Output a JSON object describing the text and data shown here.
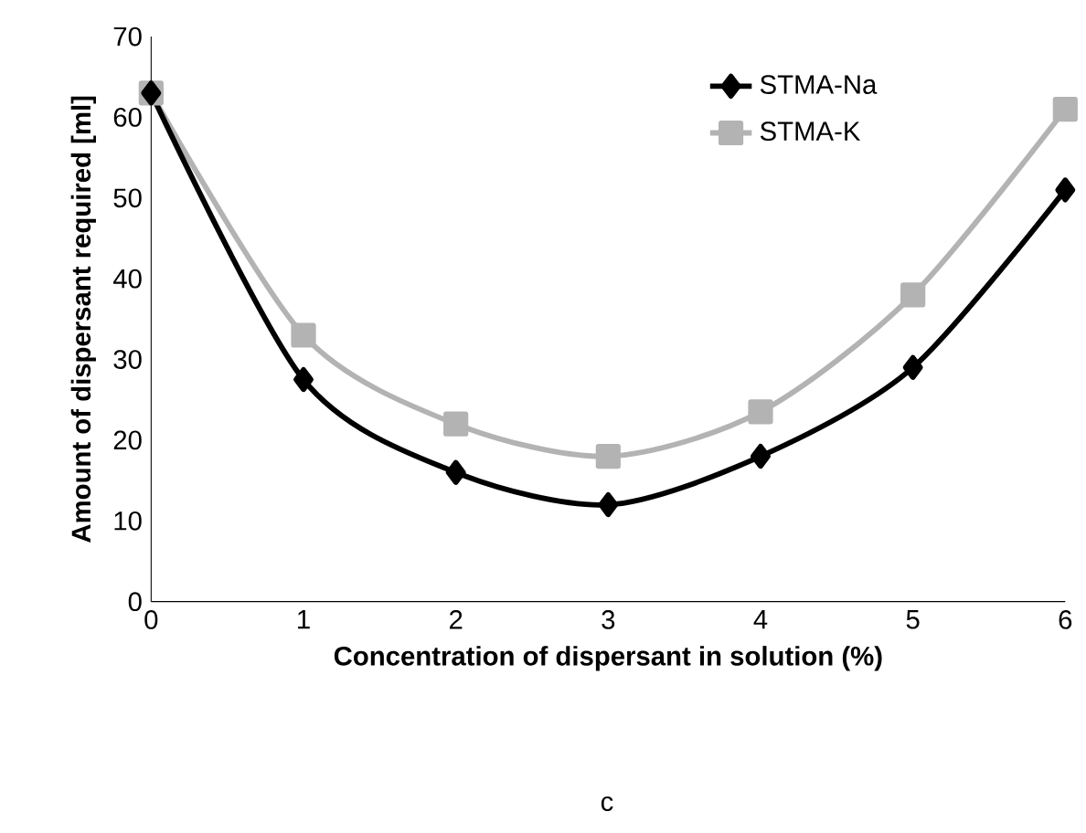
{
  "chart_data": {
    "type": "line",
    "xlabel": "Concentration of dispersant in solution (%)",
    "ylabel": "Amount of dispersant required [ml]",
    "x": [
      0,
      1,
      2,
      3,
      4,
      5,
      6
    ],
    "series": [
      {
        "name": "STMA-Na",
        "color": "#000000",
        "marker": "diamond",
        "values": [
          63,
          27.5,
          16,
          12,
          18,
          29,
          51
        ]
      },
      {
        "name": "STMA-K",
        "color": "#b3b3b3",
        "marker": "square",
        "values": [
          63,
          33,
          22,
          18,
          23.5,
          38,
          61
        ]
      }
    ],
    "xlim": [
      0,
      6
    ],
    "xticks": [
      0,
      1,
      2,
      3,
      4,
      5,
      6
    ],
    "ylim": [
      0,
      70
    ],
    "yticks": [
      0,
      10,
      20,
      30,
      40,
      50,
      60,
      70
    ],
    "grid": false,
    "legend": "top right",
    "line_style": "solid",
    "annotations": [
      "c"
    ]
  }
}
